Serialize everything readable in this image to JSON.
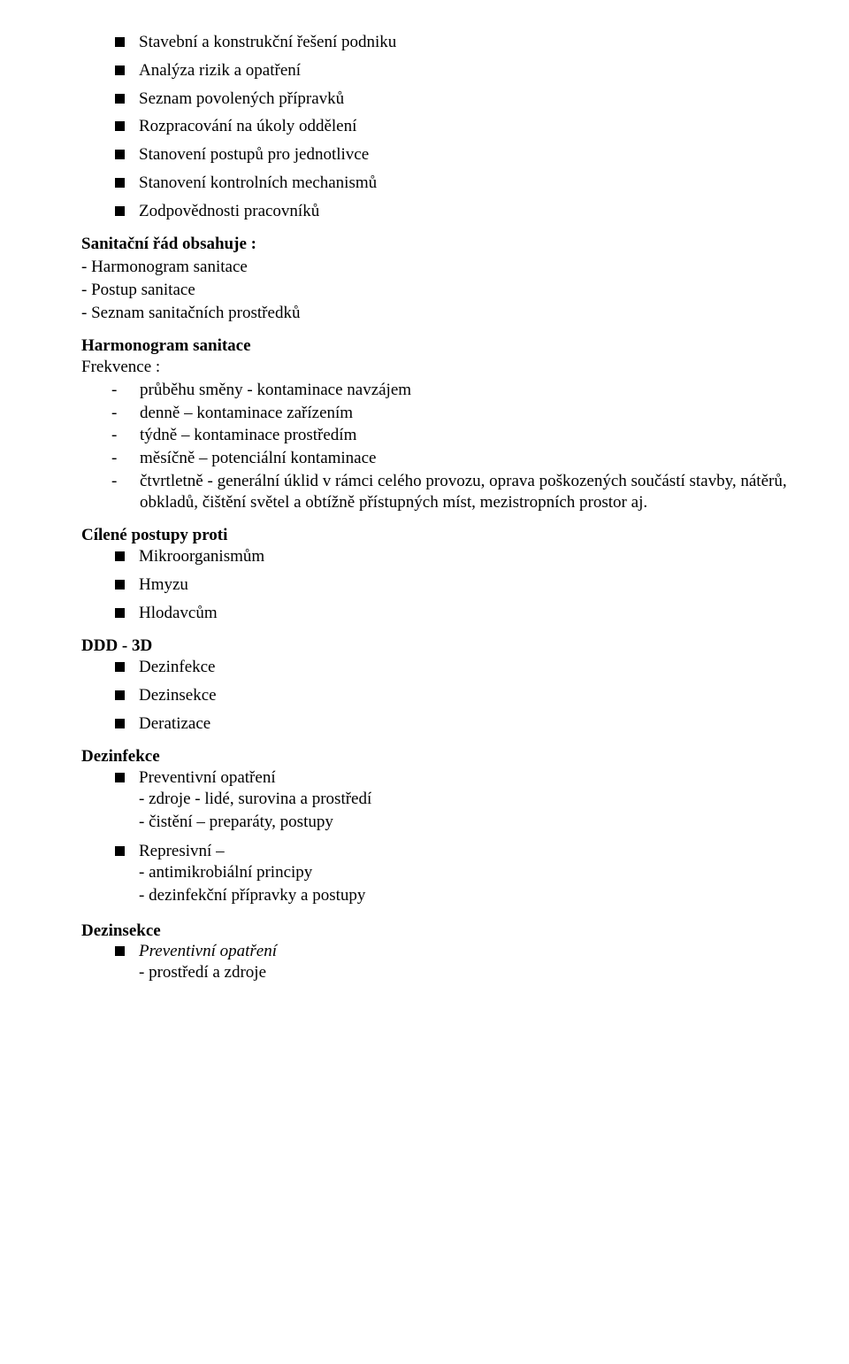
{
  "topList": [
    "Stavební a konstrukční řešení podniku",
    "Analýza rizik a opatření",
    "Seznam povolených přípravků",
    "Rozpracování na úkoly oddělení",
    "Stanovení postupů pro jednotlivce",
    "Stanovení kontrolních mechanismů",
    "Zodpovědnosti pracovníků"
  ],
  "sanitacniHeading": "Sanitační řád obsahuje :",
  "sanitacniLines": [
    "- Harmonogram sanitace",
    "- Postup sanitace",
    "- Seznam sanitačních prostředků"
  ],
  "harmonogramHeading": "Harmonogram sanitace",
  "frekvenceLabel": "Frekvence :",
  "frekvenceItems": [
    "průběhu směny - kontaminace navzájem",
    "denně – kontaminace zařízením",
    "týdně – kontaminace prostředím",
    "měsíčně – potenciální kontaminace",
    "čtvrtletně - generální úklid v rámci celého provozu, oprava poškozených součástí stavby, nátěrů, obkladů, čištění světel a obtížně přístupných míst, mezistropních prostor aj."
  ],
  "cileneHeading": "Cílené postupy  proti",
  "cileneItems": [
    "Mikroorganismům",
    "Hmyzu",
    "Hlodavcům"
  ],
  "dddHeading": "DDD  - 3D",
  "dddItems": [
    "Dezinfekce",
    "Dezinsekce",
    "Deratizace"
  ],
  "dezinfekceHeading": "Dezinfekce",
  "dezinfekceItems": [
    {
      "label": "Preventivní opatření",
      "subs": [
        "- zdroje - lidé, surovina a prostředí",
        "- čistění – preparáty, postupy"
      ]
    },
    {
      "label": "Represivní –",
      "subs": [
        "- antimikrobiální principy",
        "- dezinfekční přípravky a postupy"
      ]
    }
  ],
  "dezinsekceHeading": "Dezinsekce",
  "dezinsekceItems": [
    {
      "label": "Preventivní opatření",
      "labelItalic": true,
      "subs": [
        "- prostředí a zdroje"
      ]
    }
  ]
}
